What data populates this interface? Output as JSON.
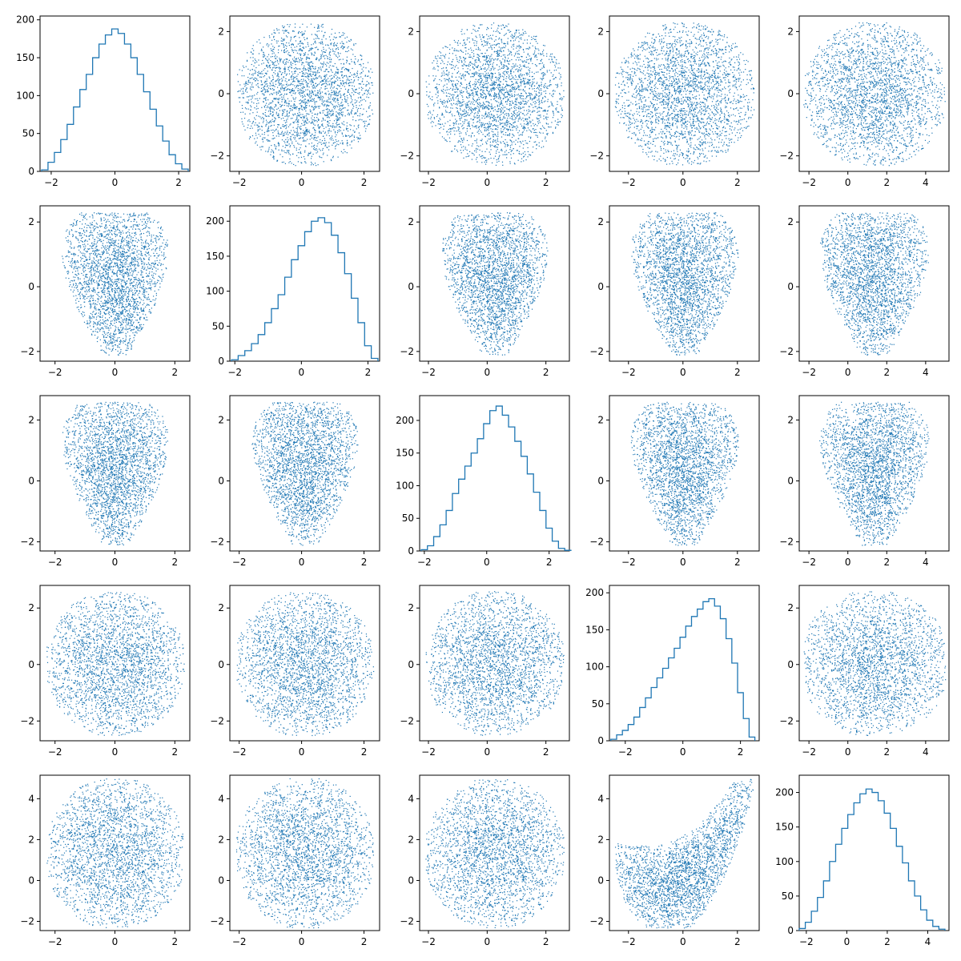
{
  "colors": {
    "series": "#1f77b4",
    "axes": "#000000",
    "background": "#ffffff"
  },
  "chart_data": {
    "type": "pairplot",
    "grid": false,
    "n_rows": 5,
    "n_cols": 5,
    "variables": [
      {
        "range": [
          -2.3,
          2.3
        ],
        "ticks": [
          -2,
          0,
          2
        ],
        "profile": "symmetric",
        "histogram": {
          "x": [
            -2.2,
            -2.0,
            -1.8,
            -1.6,
            -1.4,
            -1.2,
            -1.0,
            -0.8,
            -0.6,
            -0.4,
            -0.2,
            0.0,
            0.2,
            0.4,
            0.6,
            0.8,
            1.0,
            1.2,
            1.4,
            1.6,
            1.8,
            2.0,
            2.2
          ],
          "counts": [
            2,
            12,
            25,
            42,
            62,
            85,
            108,
            128,
            150,
            168,
            180,
            188,
            182,
            168,
            150,
            128,
            105,
            82,
            60,
            40,
            22,
            10,
            3
          ],
          "ylim": [
            0,
            205
          ],
          "yticks": [
            0,
            50,
            100,
            150,
            200
          ]
        }
      },
      {
        "range": [
          -2.1,
          2.3
        ],
        "ticks": [
          -2,
          0,
          2
        ],
        "profile": "triangle-down",
        "histogram": {
          "x": [
            -2.0,
            -1.8,
            -1.6,
            -1.4,
            -1.2,
            -1.0,
            -0.8,
            -0.6,
            -0.4,
            -0.2,
            0.0,
            0.2,
            0.4,
            0.6,
            0.8,
            1.0,
            1.2,
            1.4,
            1.6,
            1.8,
            2.0,
            2.2
          ],
          "counts": [
            2,
            8,
            15,
            25,
            38,
            55,
            75,
            95,
            120,
            145,
            165,
            185,
            200,
            205,
            198,
            180,
            155,
            125,
            90,
            55,
            22,
            4
          ],
          "ylim": [
            0,
            222
          ],
          "yticks": [
            0,
            50,
            100,
            150,
            200
          ]
        }
      },
      {
        "range": [
          -2.1,
          2.6
        ],
        "ticks": [
          -2,
          0,
          2
        ],
        "profile": "triangle-down",
        "histogram": {
          "x": [
            -2.0,
            -1.8,
            -1.6,
            -1.4,
            -1.2,
            -1.0,
            -0.8,
            -0.6,
            -0.4,
            -0.2,
            0.0,
            0.2,
            0.4,
            0.6,
            0.8,
            1.0,
            1.2,
            1.4,
            1.6,
            1.8,
            2.0,
            2.2,
            2.4,
            2.6
          ],
          "counts": [
            2,
            8,
            22,
            40,
            62,
            88,
            110,
            130,
            150,
            172,
            195,
            215,
            222,
            208,
            190,
            168,
            145,
            118,
            90,
            62,
            35,
            15,
            4,
            1
          ],
          "ylim": [
            0,
            238
          ],
          "yticks": [
            0,
            50,
            100,
            150,
            200
          ]
        }
      },
      {
        "range": [
          -2.5,
          2.6
        ],
        "ticks": [
          -2,
          0,
          2
        ],
        "profile": "skew-left",
        "histogram": {
          "x": [
            -2.4,
            -2.2,
            -2.0,
            -1.8,
            -1.6,
            -1.4,
            -1.2,
            -1.0,
            -0.8,
            -0.6,
            -0.4,
            -0.2,
            0.0,
            0.2,
            0.4,
            0.6,
            0.8,
            1.0,
            1.2,
            1.4,
            1.6,
            1.8,
            2.0,
            2.2,
            2.4
          ],
          "counts": [
            2,
            8,
            14,
            22,
            32,
            45,
            58,
            72,
            85,
            98,
            112,
            125,
            140,
            155,
            168,
            178,
            188,
            192,
            182,
            165,
            138,
            105,
            65,
            30,
            5
          ],
          "ylim": [
            0,
            210
          ],
          "yticks": [
            0,
            50,
            100,
            150,
            200
          ]
        }
      },
      {
        "range": [
          -2.3,
          5.0
        ],
        "ticks": [
          -2,
          0,
          2,
          4
        ],
        "profile": "symmetric",
        "histogram": {
          "x": [
            -2.2,
            -1.9,
            -1.6,
            -1.3,
            -1.0,
            -0.7,
            -0.4,
            -0.1,
            0.2,
            0.5,
            0.8,
            1.1,
            1.4,
            1.7,
            2.0,
            2.3,
            2.6,
            2.9,
            3.2,
            3.5,
            3.8,
            4.1,
            4.4,
            4.7
          ],
          "counts": [
            3,
            12,
            28,
            48,
            72,
            100,
            125,
            148,
            168,
            185,
            198,
            205,
            200,
            188,
            170,
            148,
            122,
            98,
            72,
            50,
            30,
            15,
            6,
            2
          ],
          "ylim": [
            0,
            225
          ],
          "yticks": [
            0,
            50,
            100,
            150,
            200
          ]
        }
      }
    ]
  }
}
